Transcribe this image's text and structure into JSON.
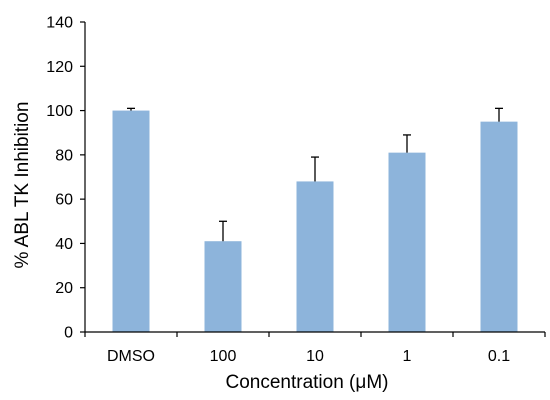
{
  "chart_data": {
    "type": "bar",
    "title": "",
    "xlabel": "Concentration (μM)",
    "ylabel": "% ABL TK Inhibition",
    "categories": [
      "DMSO",
      "100",
      "10",
      "1",
      "0.1"
    ],
    "values": [
      100,
      41,
      68,
      81,
      95
    ],
    "error_upper": [
      1,
      9,
      11,
      8,
      6
    ],
    "ylim": [
      0,
      140
    ],
    "yticks": [
      "0",
      "20",
      "40",
      "60",
      "80",
      "100",
      "120",
      "140"
    ],
    "grid": false,
    "legend": "none",
    "bar_color": "#8db4db",
    "error_color": "#000000",
    "axis_color": "#000000"
  }
}
